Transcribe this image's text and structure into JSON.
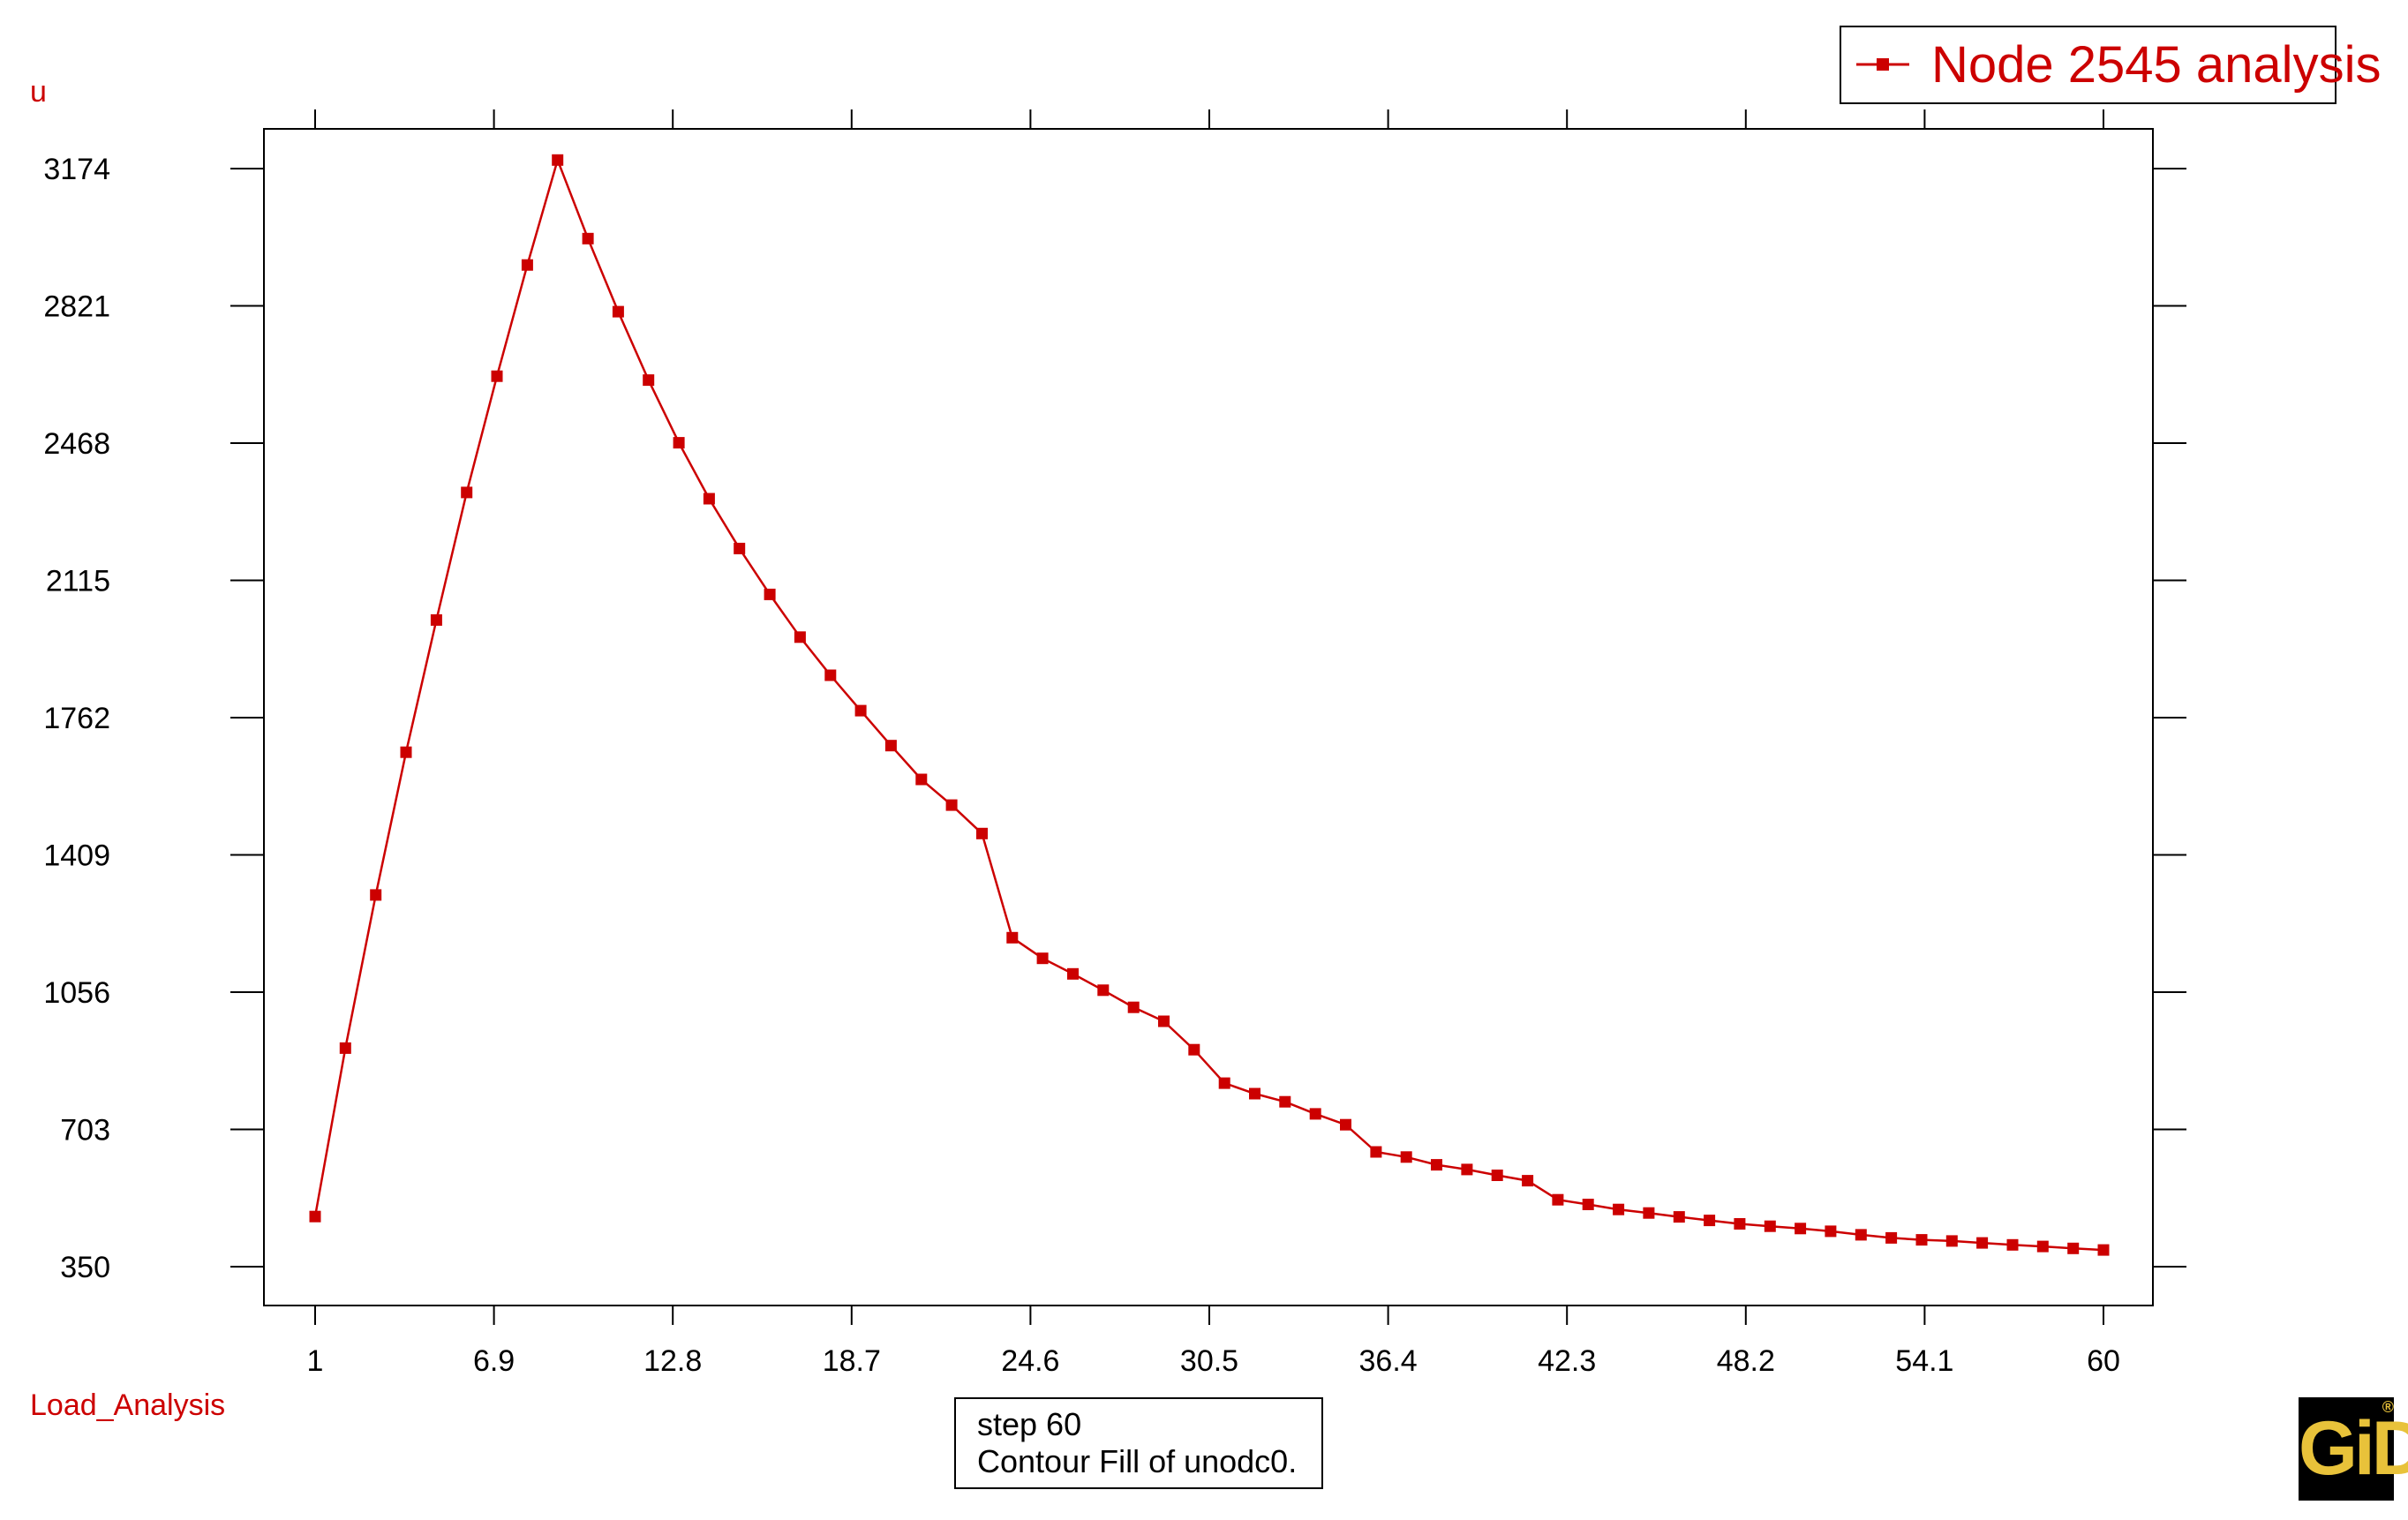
{
  "colors": {
    "series": "#cc0000",
    "axis": "#000000",
    "background": "#ffffff",
    "logo_bg": "#000000",
    "logo_fg": "#e8c23a"
  },
  "chart_data": {
    "type": "line",
    "title": "",
    "xlabel": "Load_Analysis",
    "ylabel": "u",
    "legend": {
      "placement": "top-right",
      "entries": [
        "Node 2545 analysis"
      ]
    },
    "grid": false,
    "xlim": [
      1,
      60
    ],
    "ylim": [
      350,
      3174
    ],
    "x_ticks": [
      "1",
      "6.9",
      "12.8",
      "18.7",
      "24.6",
      "30.5",
      "36.4",
      "42.3",
      "48.2",
      "54.1",
      "60"
    ],
    "y_ticks": [
      "350",
      "703",
      "1056",
      "1409",
      "1762",
      "2115",
      "2468",
      "2821",
      "3174"
    ],
    "series": [
      {
        "name": "Node 2545 analysis",
        "marker": "square",
        "x": [
          1,
          2,
          3,
          4,
          5,
          6,
          7,
          8,
          9,
          10,
          11,
          12,
          13,
          14,
          15,
          16,
          17,
          18,
          19,
          20,
          21,
          22,
          23,
          24,
          25,
          26,
          27,
          28,
          29,
          30,
          31,
          32,
          33,
          34,
          35,
          36,
          37,
          38,
          39,
          40,
          41,
          42,
          43,
          44,
          45,
          46,
          47,
          48,
          49,
          50,
          51,
          52,
          53,
          54,
          55,
          56,
          57,
          58,
          59,
          60
        ],
        "y": [
          479,
          912,
          1306,
          1673,
          2013,
          2341,
          2640,
          2926,
          3196,
          2994,
          2806,
          2630,
          2469,
          2325,
          2197,
          2079,
          1969,
          1871,
          1780,
          1690,
          1603,
          1537,
          1464,
          1196,
          1143,
          1103,
          1061,
          1017,
          981,
          908,
          822,
          795,
          774,
          743,
          715,
          645,
          632,
          612,
          600,
          585,
          571,
          522,
          510,
          497,
          488,
          478,
          469,
          460,
          454,
          448,
          441,
          432,
          424,
          419,
          416,
          411,
          406,
          402,
          397,
          393
        ]
      }
    ]
  },
  "info_box": {
    "line1": "step 60",
    "line2": "Contour Fill of unodc0."
  },
  "logo": {
    "text": "GiD",
    "mark": "®"
  }
}
